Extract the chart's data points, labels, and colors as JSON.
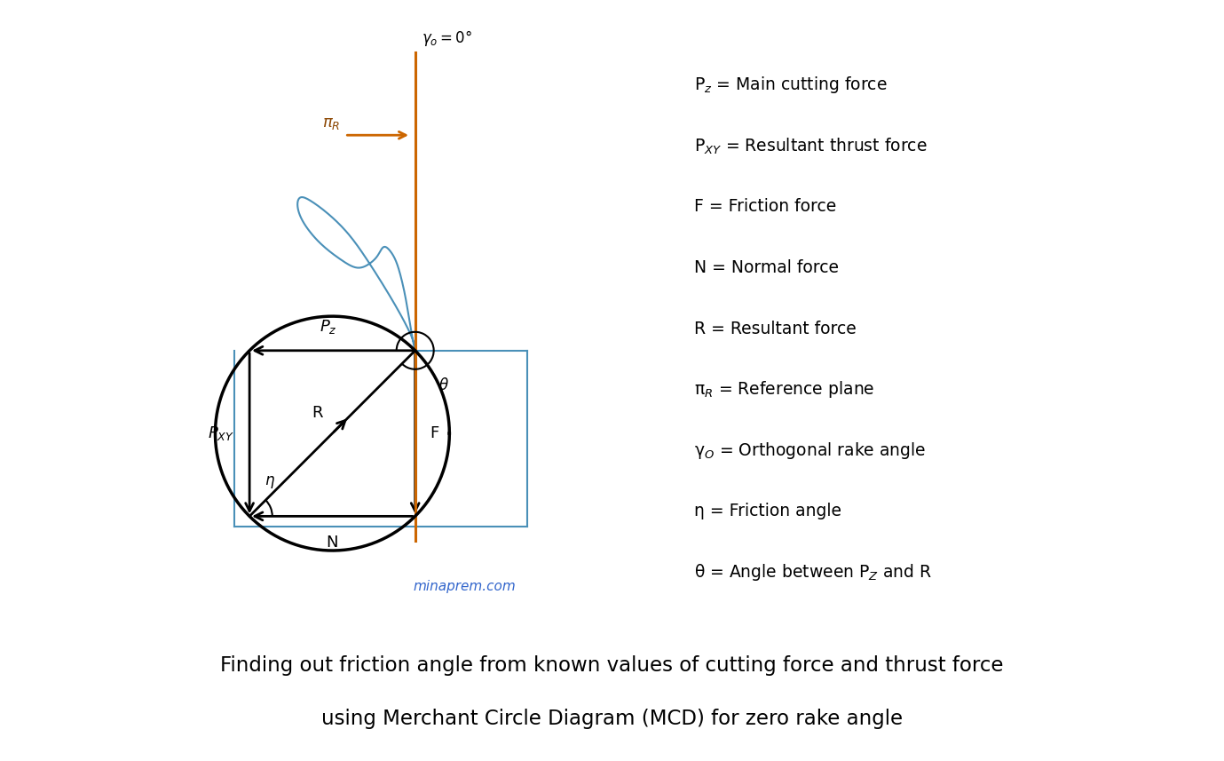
{
  "fig_width": 13.79,
  "fig_height": 8.57,
  "bg_color": "#ffffff",
  "legend_bg": "#FFF8E7",
  "bottom_bg": "#EBEBEB",
  "circle_color": "#000000",
  "diagram_color": "#4a90b8",
  "orange_color": "#CC6600",
  "blue_text": "#3366CC",
  "legend_items": [
    [
      "P$_z$",
      " = Main cutting force"
    ],
    [
      "P$_{XY}$",
      " = Resultant thrust force"
    ],
    [
      "F",
      " = Friction force"
    ],
    [
      "N",
      " = Normal force"
    ],
    [
      "R",
      " = Resultant force"
    ],
    [
      "π$_R$",
      " = Reference plane"
    ],
    [
      "γ$_O$",
      " = Orthogonal rake angle"
    ],
    [
      "η",
      " = Friction angle"
    ],
    [
      "θ",
      " = Angle between P$_Z$ and R"
    ]
  ],
  "caption_line1": "Finding out friction angle from known values of cutting force and thrust force",
  "caption_line2": "using Merchant Circle Diagram (MCD) for zero rake angle",
  "watermark": "minaprem.com"
}
